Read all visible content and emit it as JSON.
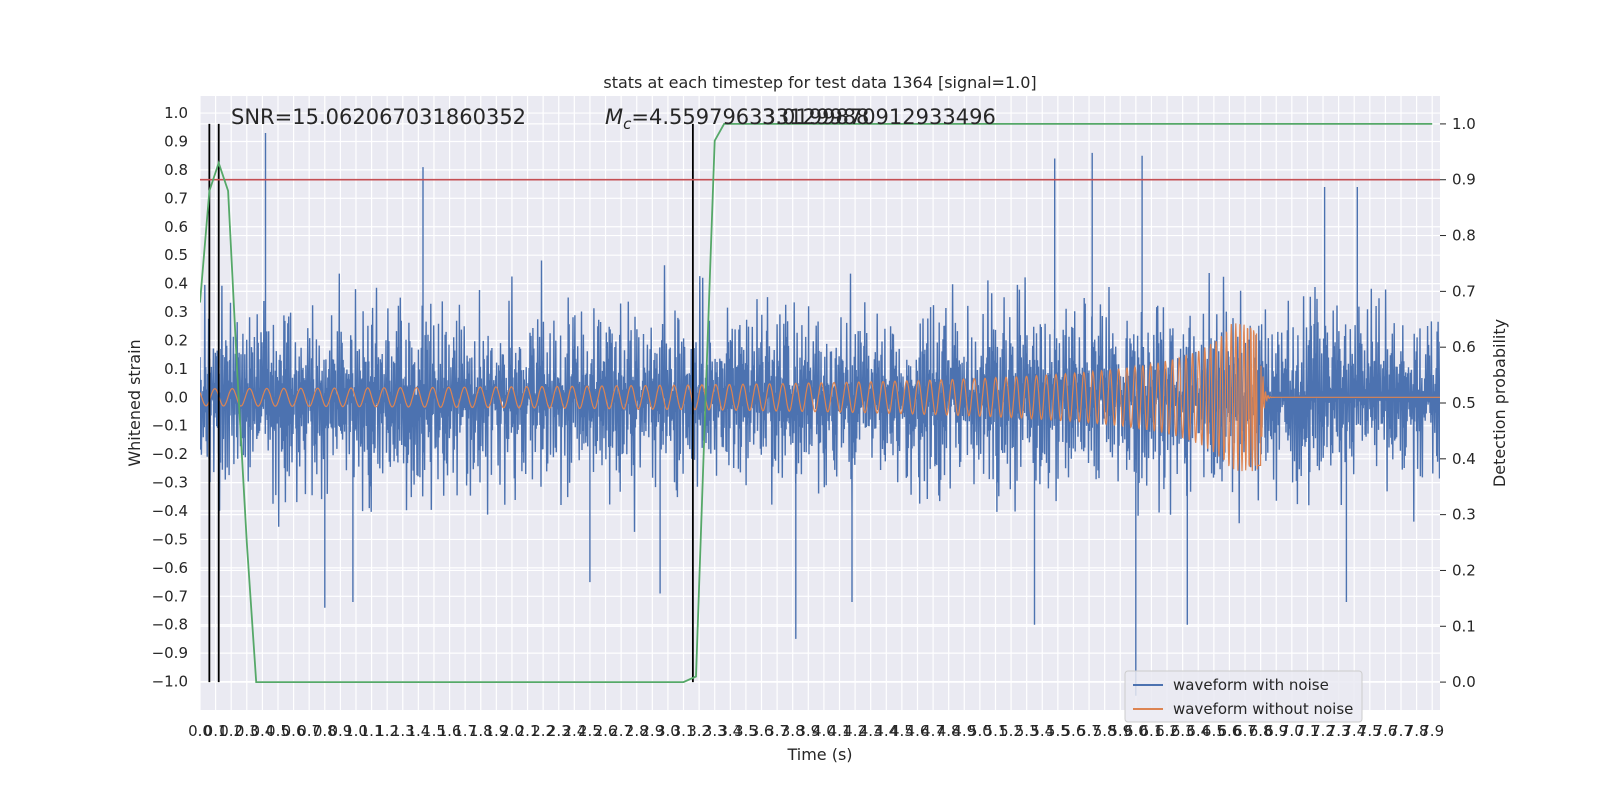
{
  "chart_data": {
    "type": "line",
    "title": "stats at each timestep for test data 1364 [signal=1.0]",
    "xlabel": "Time (s)",
    "ylabel": "Whitened strain",
    "y2label": "Detection probability",
    "xlim": [
      0.0,
      7.95
    ],
    "ylim": [
      -1.1,
      1.06
    ],
    "y2lim": [
      -0.05,
      1.05
    ],
    "x_ticks": [
      "0.0",
      "0.1",
      "0.2",
      "0.3",
      "0.4",
      "0.5",
      "0.6",
      "0.7",
      "0.8",
      "0.9",
      "1.0",
      "1.1",
      "1.2",
      "1.3",
      "1.4",
      "1.5",
      "1.6",
      "1.7",
      "1.8",
      "1.9",
      "2.0",
      "2.1",
      "2.2",
      "2.3",
      "2.4",
      "2.5",
      "2.6",
      "2.7",
      "2.8",
      "2.9",
      "3.0",
      "3.1",
      "3.2",
      "3.3",
      "3.4",
      "3.5",
      "3.6",
      "3.7",
      "3.8",
      "3.9",
      "4.0",
      "4.1",
      "4.2",
      "4.3",
      "4.4",
      "4.5",
      "4.6",
      "4.7",
      "4.8",
      "4.9",
      "5.0",
      "5.1",
      "5.2",
      "5.3",
      "5.4",
      "5.5",
      "5.6",
      "5.7",
      "5.8",
      "5.9",
      "6.0",
      "6.1",
      "6.2",
      "6.3",
      "6.4",
      "6.5",
      "6.6",
      "6.7",
      "6.8",
      "6.9",
      "7.0",
      "7.1",
      "7.2",
      "7.3",
      "7.4",
      "7.5",
      "7.6",
      "7.7",
      "7.8",
      "7.9"
    ],
    "y_ticks": [
      "−1.0",
      "−0.9",
      "−0.8",
      "−0.7",
      "−0.6",
      "−0.5",
      "−0.4",
      "−0.3",
      "−0.2",
      "−0.1",
      "0.0",
      "0.1",
      "0.2",
      "0.3",
      "0.4",
      "0.5",
      "0.6",
      "0.7",
      "0.8",
      "0.9",
      "1.0"
    ],
    "y2_ticks": [
      "0.0",
      "0.1",
      "0.2",
      "0.3",
      "0.4",
      "0.5",
      "0.6",
      "0.7",
      "0.8",
      "0.9",
      "1.0"
    ],
    "annotations": {
      "snr": "SNR=15.062067031860352",
      "mc_prefix": "M",
      "mc_sub": "c",
      "mc_value": "=4.559796333129988",
      "mc_overlap": "3.0199870912933496"
    },
    "threshold": 0.9,
    "threshold_color": "#c44e52",
    "vertical_lines": [
      0.06,
      0.12,
      3.16
    ],
    "legend": {
      "position": "lower right",
      "entries": [
        "waveform with noise",
        "waveform without noise"
      ]
    },
    "series": [
      {
        "name": "waveform with noise",
        "color": "#4c72b0",
        "axis": "left",
        "envelope": 0.42,
        "spikes": [
          {
            "x": 0.42,
            "y": 0.93
          },
          {
            "x": 1.43,
            "y": 0.81
          },
          {
            "x": 5.48,
            "y": 0.84
          },
          {
            "x": 5.72,
            "y": 0.86
          },
          {
            "x": 6.04,
            "y": 0.85
          },
          {
            "x": 7.21,
            "y": 0.74
          },
          {
            "x": 7.42,
            "y": 0.74
          },
          {
            "x": 3.82,
            "y": -0.85
          },
          {
            "x": 5.35,
            "y": -0.8
          },
          {
            "x": 6.0,
            "y": -1.05
          },
          {
            "x": 6.33,
            "y": -0.8
          },
          {
            "x": 7.35,
            "y": -0.72
          },
          {
            "x": 0.8,
            "y": -0.74
          },
          {
            "x": 0.98,
            "y": -0.72
          },
          {
            "x": 2.5,
            "y": -0.65
          },
          {
            "x": 2.95,
            "y": -0.69
          },
          {
            "x": 4.18,
            "y": -0.72
          }
        ]
      },
      {
        "name": "waveform without noise",
        "color": "#dd8452",
        "axis": "left",
        "start_amplitude": 0.03,
        "peak_amplitude": 0.26,
        "merger_time": 6.8
      },
      {
        "name": "detection probability",
        "color": "#55a868",
        "axis": "right",
        "x": [
          0.0,
          0.06,
          0.12,
          0.18,
          0.24,
          0.3,
          0.36,
          1.4,
          3.1,
          3.18,
          3.24,
          3.3,
          3.36,
          7.9
        ],
        "y": [
          0.68,
          0.88,
          0.93,
          0.88,
          0.55,
          0.25,
          0.0,
          0.0,
          0.0,
          0.01,
          0.5,
          0.97,
          1.0,
          1.0
        ]
      }
    ]
  }
}
